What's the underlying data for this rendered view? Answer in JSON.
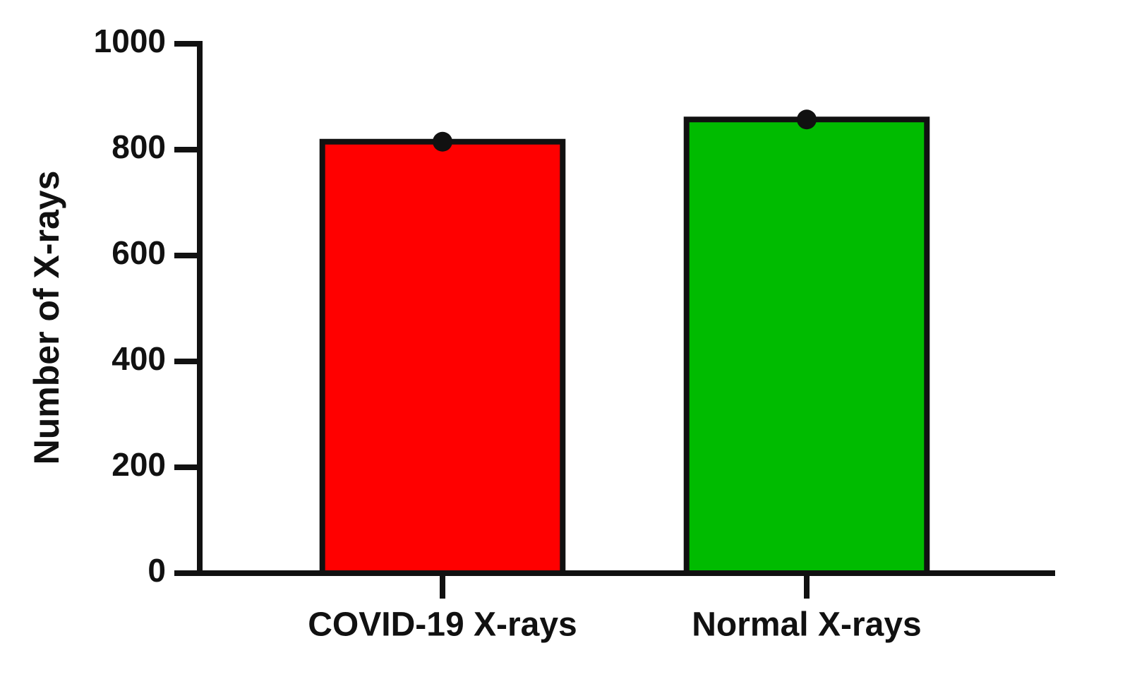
{
  "chart_data": {
    "type": "bar",
    "y_label": "Number of X-rays",
    "categories": [
      "COVID-19 X-rays",
      "Normal X-rays"
    ],
    "values": [
      815,
      857
    ],
    "colors": [
      "#ff0000",
      "#00bb00"
    ],
    "ylim": [
      0,
      1000
    ],
    "yticks": [
      0,
      200,
      400,
      600,
      800,
      1000
    ],
    "grid": false
  }
}
